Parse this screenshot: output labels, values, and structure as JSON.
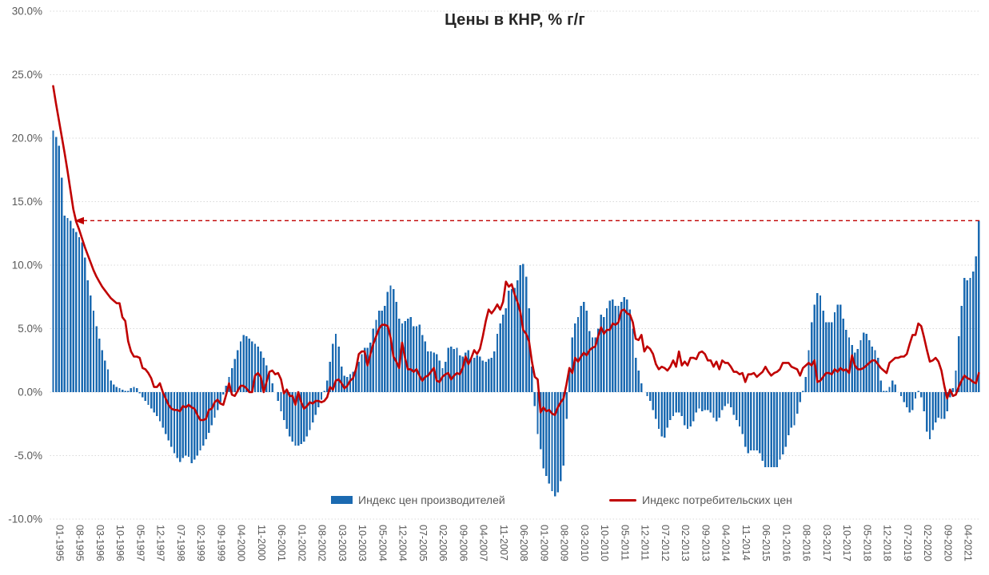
{
  "title": "Цены в КНР, % г/г",
  "chart_data": {
    "type": "bar+line",
    "title": "Цены в КНР, % г/г",
    "grid": "horizontal-dotted",
    "legend_position": "bottom-center",
    "y_axis": {
      "min": -10,
      "max": 30,
      "tick_step": 5,
      "tick_labels": [
        "30.0%",
        "25.0%",
        "20.0%",
        "15.0%",
        "10.0%",
        "5.0%",
        "0.0%",
        "-5.0%",
        "-10.0%"
      ]
    },
    "x_axis": {
      "start_month": "01-1995",
      "end_month": "10-2021",
      "n_months": 322,
      "tick_every_months": 7,
      "tick_labels": [
        "01-1995",
        "08-1995",
        "03-1996",
        "10-1996",
        "05-1997",
        "12-1997",
        "07-1998",
        "02-1999",
        "09-1999",
        "04-2000",
        "11-2000",
        "06-2001",
        "01-2002",
        "08-2002",
        "03-2003",
        "10-2003",
        "05-2004",
        "12-2004",
        "07-2005",
        "02-2006",
        "09-2006",
        "04-2007",
        "11-2007",
        "06-2008",
        "01-2009",
        "08-2009",
        "03-2010",
        "10-2010",
        "05-2011",
        "12-2011",
        "07-2012",
        "02-2013",
        "09-2013",
        "04-2014",
        "11-2014",
        "06-2015",
        "01-2016",
        "08-2016",
        "03-2017",
        "10-2017",
        "05-2018",
        "12-2018",
        "07-2019",
        "02-2020",
        "09-2020",
        "04-2021"
      ]
    },
    "series": [
      {
        "name": "Индекс цен производителей",
        "type": "bar",
        "color": "#1b6ab1",
        "values": [
          20.6,
          20.1,
          19.4,
          16.9,
          13.9,
          13.7,
          13.5,
          12.9,
          12.6,
          12.2,
          11.8,
          10.6,
          8.8,
          7.6,
          6.4,
          5.2,
          4.2,
          3.3,
          2.5,
          1.8,
          0.9,
          0.6,
          0.4,
          0.3,
          0.2,
          0.1,
          0.1,
          0.3,
          0.4,
          0.3,
          -0.1,
          -0.4,
          -0.7,
          -1.0,
          -1.3,
          -1.6,
          -1.9,
          -2.3,
          -2.8,
          -3.3,
          -3.8,
          -4.3,
          -4.8,
          -5.2,
          -5.5,
          -5.2,
          -5.0,
          -5.1,
          -5.6,
          -5.3,
          -5.0,
          -4.6,
          -4.2,
          -3.7,
          -3.2,
          -2.6,
          -2.0,
          -1.4,
          -0.8,
          -0.2,
          0.5,
          1.2,
          1.9,
          2.6,
          3.3,
          4.0,
          4.5,
          4.4,
          4.2,
          4.0,
          3.8,
          3.6,
          3.2,
          2.7,
          2.1,
          1.4,
          0.7,
          0.0,
          -0.7,
          -1.5,
          -2.2,
          -2.9,
          -3.5,
          -3.9,
          -4.2,
          -4.2,
          -4.1,
          -3.9,
          -3.5,
          -3.0,
          -2.4,
          -1.8,
          -1.2,
          -0.6,
          0.1,
          0.9,
          2.4,
          3.8,
          4.6,
          3.6,
          2.0,
          1.3,
          1.2,
          1.4,
          1.6,
          1.9,
          2.4,
          3.0,
          3.5,
          3.5,
          3.9,
          5.0,
          5.7,
          6.4,
          6.4,
          6.8,
          7.9,
          8.4,
          8.1,
          7.1,
          5.8,
          5.4,
          5.6,
          5.8,
          5.9,
          5.2,
          5.2,
          5.3,
          4.5,
          4.0,
          3.2,
          3.2,
          3.1,
          3.0,
          2.5,
          1.9,
          2.4,
          3.5,
          3.6,
          3.4,
          3.5,
          2.9,
          2.8,
          3.1,
          3.3,
          2.6,
          2.7,
          2.9,
          2.8,
          2.5,
          2.4,
          2.6,
          2.7,
          3.2,
          4.6,
          5.4,
          6.1,
          6.6,
          8.0,
          8.1,
          8.2,
          8.8,
          10.0,
          10.1,
          9.1,
          6.6,
          2.0,
          -1.1,
          -3.3,
          -4.5,
          -6.0,
          -6.6,
          -7.2,
          -7.8,
          -8.2,
          -7.9,
          -7.0,
          -5.8,
          -2.1,
          1.7,
          4.3,
          5.4,
          5.9,
          6.8,
          7.1,
          6.4,
          4.8,
          4.3,
          4.3,
          5.0,
          6.1,
          5.9,
          6.6,
          7.2,
          7.3,
          6.8,
          6.8,
          7.1,
          7.5,
          7.3,
          6.5,
          5.0,
          2.7,
          1.7,
          0.7,
          0.0,
          -0.3,
          -0.7,
          -1.4,
          -2.1,
          -2.9,
          -3.5,
          -3.6,
          -2.8,
          -2.2,
          -1.9,
          -1.6,
          -1.6,
          -1.9,
          -2.6,
          -2.9,
          -2.7,
          -2.3,
          -1.6,
          -1.3,
          -1.5,
          -1.4,
          -1.4,
          -1.6,
          -2.0,
          -2.3,
          -2.0,
          -1.4,
          -1.1,
          -0.9,
          -1.2,
          -1.8,
          -2.2,
          -2.7,
          -3.3,
          -4.3,
          -4.8,
          -4.6,
          -4.6,
          -4.6,
          -4.8,
          -5.4,
          -5.9,
          -5.9,
          -5.9,
          -5.9,
          -5.9,
          -5.3,
          -4.9,
          -4.3,
          -3.4,
          -2.8,
          -2.6,
          -1.7,
          -0.8,
          0.1,
          1.2,
          3.3,
          5.5,
          6.9,
          7.8,
          7.6,
          6.4,
          5.5,
          5.5,
          5.5,
          6.3,
          6.9,
          6.9,
          5.8,
          4.9,
          4.3,
          3.7,
          3.1,
          3.4,
          4.1,
          4.7,
          4.6,
          4.1,
          3.6,
          3.3,
          2.7,
          0.9,
          0.1,
          0.1,
          0.4,
          0.9,
          0.6,
          0.0,
          -0.3,
          -0.8,
          -1.2,
          -1.6,
          -1.4,
          -0.5,
          0.1,
          -0.4,
          -1.5,
          -3.1,
          -3.7,
          -3.0,
          -2.4,
          -2.0,
          -2.1,
          -2.1,
          -1.5,
          -0.4,
          0.3,
          1.7,
          4.4,
          6.8,
          9.0,
          8.8,
          9.0,
          9.5,
          10.7,
          13.5
        ]
      },
      {
        "name": "Индекс потребительских цен",
        "type": "line",
        "color": "#c00000",
        "values": [
          24.1,
          22.7,
          21.4,
          20.1,
          18.8,
          17.4,
          15.9,
          14.4,
          13.4,
          12.8,
          12.1,
          11.4,
          10.8,
          10.2,
          9.6,
          9.1,
          8.7,
          8.3,
          8.0,
          7.7,
          7.4,
          7.2,
          7.0,
          7.0,
          5.9,
          5.6,
          4.0,
          3.2,
          2.8,
          2.8,
          2.7,
          1.9,
          1.8,
          1.5,
          1.1,
          0.4,
          0.4,
          0.7,
          0.0,
          -0.5,
          -1.0,
          -1.3,
          -1.4,
          -1.4,
          -1.5,
          -1.1,
          -1.2,
          -1.0,
          -1.2,
          -1.3,
          -1.8,
          -2.2,
          -2.2,
          -2.1,
          -1.4,
          -1.3,
          -0.8,
          -0.6,
          -0.9,
          -1.0,
          -0.2,
          0.7,
          -0.2,
          -0.3,
          0.1,
          0.5,
          0.5,
          0.3,
          0.0,
          0.0,
          1.3,
          1.5,
          1.2,
          0.0,
          0.8,
          1.6,
          1.7,
          1.4,
          1.5,
          1.0,
          -0.1,
          0.2,
          -0.3,
          -0.3,
          -1.0,
          0.0,
          -0.8,
          -1.3,
          -1.1,
          -0.8,
          -0.9,
          -0.7,
          -0.7,
          -0.8,
          -0.7,
          -0.4,
          0.4,
          0.2,
          0.9,
          1.0,
          0.7,
          0.3,
          0.5,
          0.9,
          1.1,
          1.8,
          3.0,
          3.2,
          3.2,
          2.1,
          3.0,
          3.8,
          4.4,
          5.0,
          5.3,
          5.3,
          5.2,
          4.3,
          2.8,
          2.4,
          1.9,
          3.9,
          2.7,
          1.8,
          1.8,
          1.6,
          1.8,
          1.3,
          0.9,
          1.2,
          1.3,
          1.6,
          1.9,
          0.9,
          0.8,
          1.2,
          1.4,
          1.5,
          1.0,
          1.3,
          1.5,
          1.4,
          1.9,
          2.8,
          2.2,
          2.7,
          3.3,
          3.0,
          3.4,
          4.4,
          5.6,
          6.5,
          6.2,
          6.5,
          6.9,
          6.5,
          7.1,
          8.7,
          8.3,
          8.5,
          7.7,
          7.1,
          6.3,
          4.9,
          4.6,
          4.0,
          2.4,
          1.2,
          1.0,
          -1.6,
          -1.2,
          -1.5,
          -1.4,
          -1.7,
          -1.8,
          -1.2,
          -0.8,
          -0.5,
          0.6,
          1.9,
          1.5,
          2.7,
          2.4,
          2.8,
          3.1,
          2.9,
          3.3,
          3.5,
          3.6,
          4.4,
          5.1,
          4.6,
          4.9,
          4.9,
          5.4,
          5.3,
          5.5,
          6.4,
          6.5,
          6.2,
          6.1,
          5.5,
          4.2,
          4.1,
          4.5,
          3.2,
          3.6,
          3.4,
          3.0,
          2.2,
          1.8,
          2.0,
          1.9,
          1.7,
          2.0,
          2.5,
          2.0,
          3.2,
          2.1,
          2.4,
          2.1,
          2.7,
          2.7,
          2.6,
          3.1,
          3.2,
          3.0,
          2.5,
          2.5,
          2.0,
          2.4,
          1.8,
          2.5,
          2.3,
          2.3,
          2.0,
          1.6,
          1.6,
          1.4,
          1.5,
          0.8,
          1.4,
          1.4,
          1.5,
          1.2,
          1.4,
          1.6,
          2.0,
          1.6,
          1.3,
          1.5,
          1.6,
          1.8,
          2.3,
          2.3,
          2.3,
          2.0,
          1.9,
          1.8,
          1.3,
          1.9,
          2.1,
          2.3,
          2.1,
          2.5,
          0.8,
          0.9,
          1.2,
          1.5,
          1.5,
          1.4,
          1.8,
          1.6,
          1.9,
          1.7,
          1.8,
          1.5,
          2.9,
          2.1,
          1.8,
          1.8,
          1.9,
          2.1,
          2.3,
          2.5,
          2.5,
          2.2,
          1.9,
          1.7,
          1.5,
          2.3,
          2.5,
          2.7,
          2.7,
          2.8,
          2.8,
          3.0,
          3.8,
          4.5,
          4.5,
          5.4,
          5.2,
          4.3,
          3.3,
          2.4,
          2.5,
          2.7,
          2.4,
          1.7,
          0.5,
          -0.5,
          0.2,
          -0.3,
          -0.2,
          0.4,
          0.9,
          1.3,
          1.1,
          1.0,
          0.8,
          0.7,
          1.5
        ]
      }
    ],
    "annotation_line": {
      "value_pct": 13.5,
      "style": "dashed",
      "color": "#c00000",
      "arrow": "left"
    },
    "colors": {
      "grid": "#d9d9d9",
      "axis_text": "#595959",
      "title_text": "#262626"
    }
  }
}
